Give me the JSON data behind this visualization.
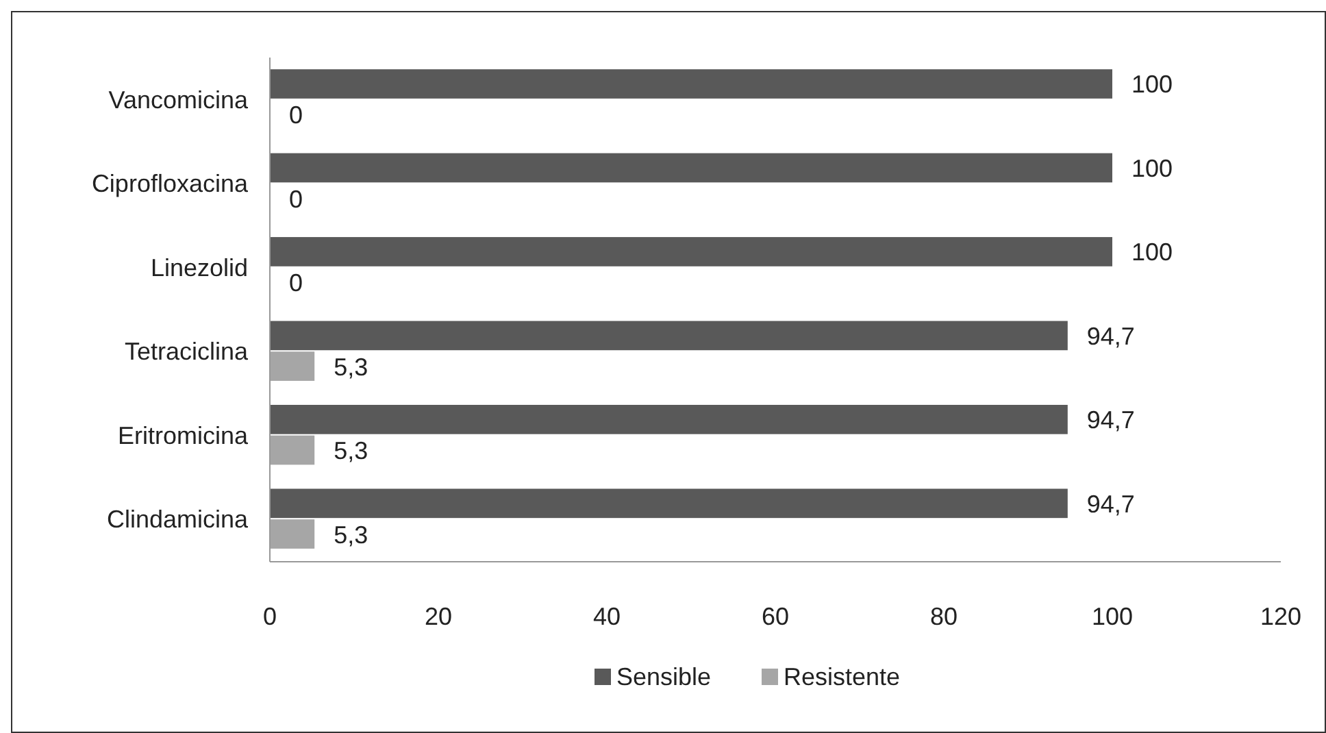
{
  "chart_data": {
    "type": "bar",
    "orientation": "horizontal",
    "categories": [
      "Vancomicina",
      "Ciprofloxacina",
      "Linezolid",
      "Tetraciclina",
      "Eritromicina",
      "Clindamicina"
    ],
    "series": [
      {
        "name": "Sensible",
        "color": "#595959",
        "values": [
          100,
          100,
          100,
          94.7,
          94.7,
          94.7
        ],
        "value_labels": [
          "100",
          "100",
          "100",
          "94,7",
          "94,7",
          "94,7"
        ]
      },
      {
        "name": "Resistente",
        "color": "#a6a6a6",
        "values": [
          0,
          0,
          0,
          5.3,
          5.3,
          5.3
        ],
        "value_labels": [
          "0",
          "0",
          "0",
          "5,3",
          "5,3",
          "5,3"
        ]
      }
    ],
    "xlim": [
      0,
      120
    ],
    "xticks": [
      0,
      20,
      40,
      60,
      80,
      100,
      120
    ],
    "grid": false,
    "legend": "bottom"
  }
}
